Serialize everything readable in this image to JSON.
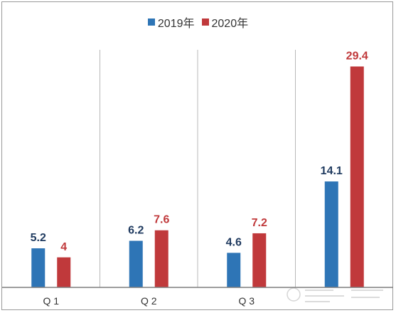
{
  "chart_data": {
    "type": "bar",
    "categories": [
      "Q1",
      "Q2",
      "Q3",
      ""
    ],
    "series": [
      {
        "name": "2019年",
        "color": "#2E75B6",
        "values": [
          5.2,
          6.2,
          4.6,
          14.1
        ],
        "labels": [
          "5.2",
          "6.2",
          "4.6",
          "14.1"
        ]
      },
      {
        "name": "2020年",
        "color": "#C0393B",
        "values": [
          4.0,
          7.6,
          7.2,
          29.4
        ],
        "labels": [
          "4",
          "7.6",
          "7.2",
          "29.4"
        ]
      }
    ],
    "title": "",
    "xlabel": "",
    "ylabel": "",
    "ylim": [
      0,
      32
    ],
    "grid": false,
    "legend_position": "top",
    "x_tick_labels": [
      "Q 1",
      "Q 2",
      "Q 3",
      ""
    ]
  },
  "colors": {
    "series_2019": "#2E75B6",
    "series_2020": "#C0393B",
    "divider": "#b8b8b8",
    "baseline": "#7f7f7f"
  },
  "watermark": {
    "icon": "logo-watermark-icon"
  }
}
